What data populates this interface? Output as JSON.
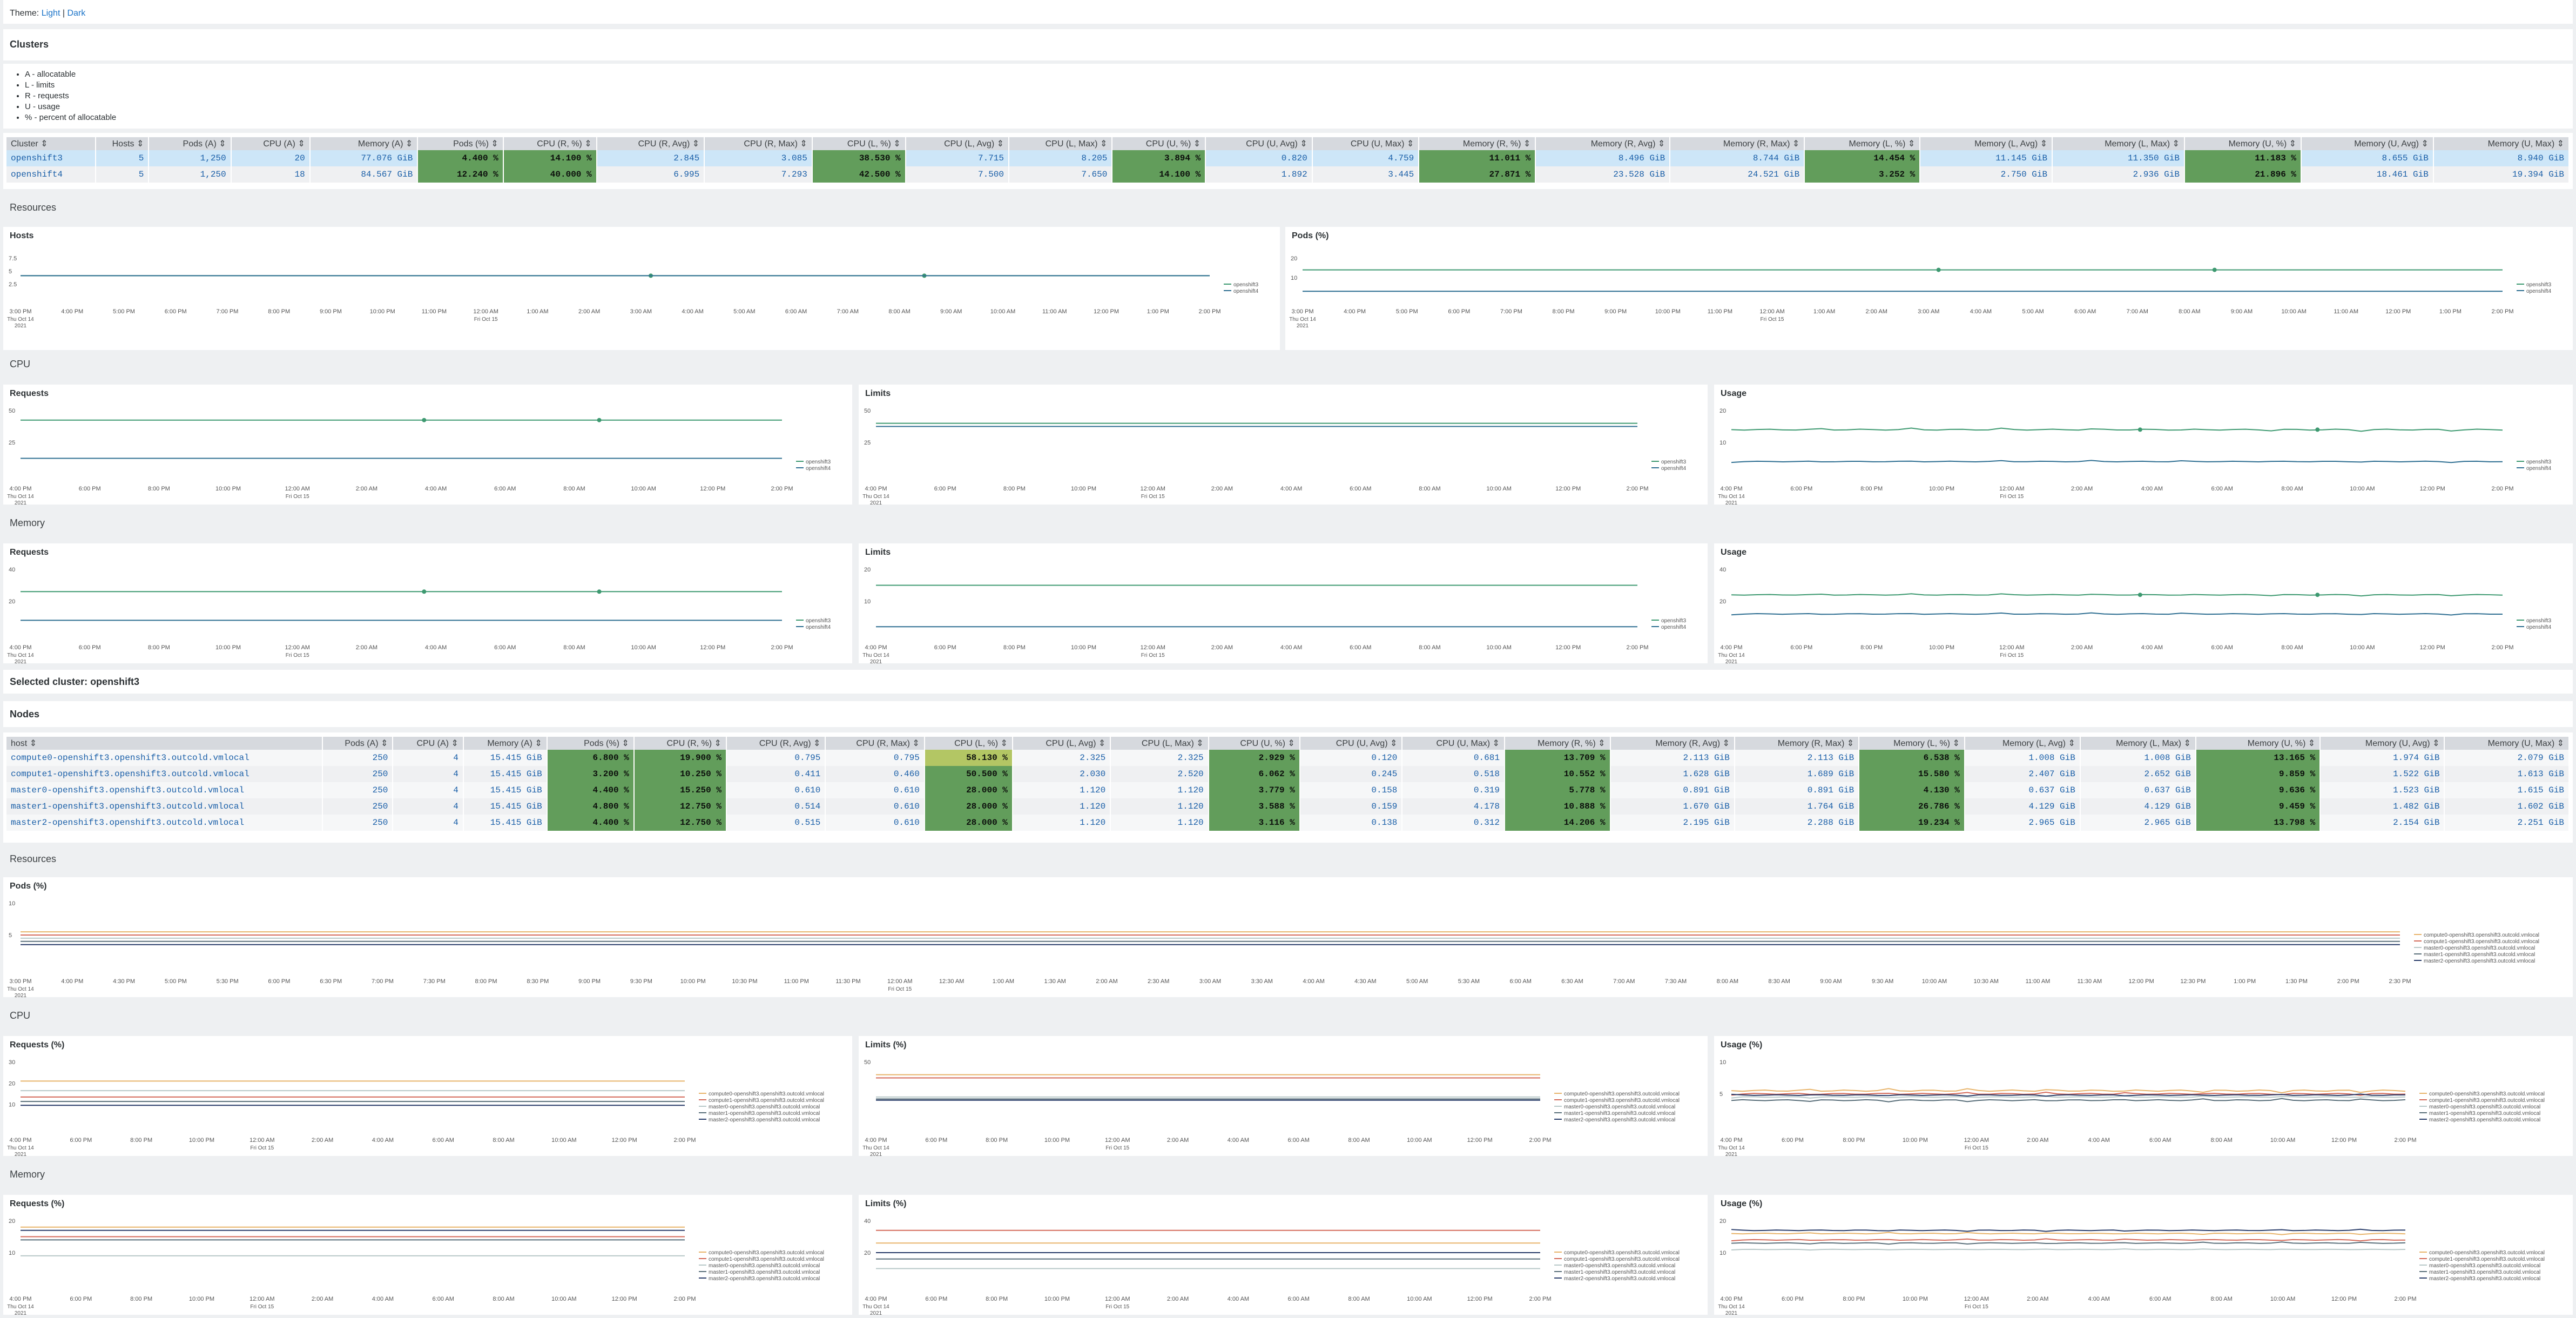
{
  "theme": {
    "label": "Theme:",
    "light": "Light",
    "sep": "|",
    "dark": "Dark"
  },
  "clusters": {
    "title": "Clusters",
    "legend": [
      "A - allocatable",
      "L - limits",
      "R - requests",
      "U - usage",
      "% - percent of allocatable"
    ],
    "columns": [
      "Cluster ⇕",
      "Hosts ⇕",
      "Pods (A) ⇕",
      "CPU (A) ⇕",
      "Memory (A) ⇕",
      "Pods (%) ⇕",
      "CPU (R, %) ⇕",
      "CPU (R, Avg) ⇕",
      "CPU (R, Max) ⇕",
      "CPU (L, %) ⇕",
      "CPU (L, Avg) ⇕",
      "CPU (L, Max) ⇕",
      "CPU (U, %) ⇕",
      "CPU (U, Avg) ⇕",
      "CPU (U, Max) ⇕",
      "Memory (R, %) ⇕",
      "Memory (R, Avg) ⇕",
      "Memory (R, Max) ⇕",
      "Memory (L, %) ⇕",
      "Memory (L, Avg) ⇕",
      "Memory (L, Max) ⇕",
      "Memory (U, %) ⇕",
      "Memory (U, Avg) ⇕",
      "Memory (U, Max) ⇕"
    ],
    "rows": [
      [
        "openshift3",
        "5",
        "1,250",
        "20",
        "77.076 GiB",
        "4.400 %",
        "14.100 %",
        "2.845",
        "3.085",
        "38.530 %",
        "7.715",
        "8.205",
        "3.894 %",
        "0.820",
        "4.759",
        "11.011 %",
        "8.496 GiB",
        "8.744 GiB",
        "14.454 %",
        "11.145 GiB",
        "11.350 GiB",
        "11.183 %",
        "8.655 GiB",
        "8.940 GiB"
      ],
      [
        "openshift4",
        "5",
        "1,250",
        "18",
        "84.567 GiB",
        "12.240 %",
        "40.000 %",
        "6.995",
        "7.293",
        "42.500 %",
        "7.500",
        "7.650",
        "14.100 %",
        "1.892",
        "3.445",
        "27.871 %",
        "23.528 GiB",
        "24.521 GiB",
        "3.252 %",
        "2.750 GiB",
        "2.936 GiB",
        "21.896 %",
        "18.461 GiB",
        "19.394 GiB"
      ]
    ],
    "highlight": [
      [
        5,
        6,
        9,
        12,
        15,
        18,
        21
      ],
      [
        5,
        6,
        9,
        12,
        15,
        18,
        21
      ]
    ],
    "hl_color": "#629d5b"
  },
  "resources1": {
    "title": "Resources",
    "hosts_title": "Hosts",
    "pods_title": "Pods (%)",
    "cpu_title": "CPU",
    "memory_title": "Memory",
    "requests": "Requests",
    "limits": "Limits",
    "usage": "Usage"
  },
  "legend_clusters": [
    "openshift3",
    "openshift4"
  ],
  "series_colors": {
    "openshift3": "#3d9970",
    "openshift4": "#2f6f92"
  },
  "axis_small": {
    "hosts_y": [
      "7.5",
      "5",
      "2.5"
    ],
    "pods_y": [
      "20",
      "10"
    ],
    "cpu_req_y": [
      "50",
      "25"
    ],
    "cpu_lim_y": [
      "50",
      "25"
    ],
    "cpu_use_y": [
      "20",
      "10"
    ],
    "mem_req_y": [
      "40",
      "20"
    ],
    "mem_lim_y": [
      "20",
      "10"
    ],
    "mem_use_y": [
      "40",
      "20"
    ]
  },
  "xticks_full": [
    "3:00 PM",
    "4:00 PM",
    "5:00 PM",
    "6:00 PM",
    "7:00 PM",
    "8:00 PM",
    "9:00 PM",
    "10:00 PM",
    "11:00 PM",
    "12:00 AM",
    "1:00 AM",
    "2:00 AM",
    "3:00 AM",
    "4:00 AM",
    "5:00 AM",
    "6:00 AM",
    "7:00 AM",
    "8:00 AM",
    "9:00 AM",
    "10:00 AM",
    "11:00 AM",
    "12:00 PM",
    "1:00 PM",
    "2:00 PM"
  ],
  "xticks_half": [
    "4:00 PM",
    "6:00 PM",
    "8:00 PM",
    "10:00 PM",
    "12:00 AM",
    "2:00 AM",
    "4:00 AM",
    "6:00 AM",
    "8:00 AM",
    "10:00 AM",
    "12:00 PM",
    "2:00 PM"
  ],
  "xdate": {
    "day1": "Thu Oct 14",
    "year": "2021",
    "day2": "Fri Oct 15"
  },
  "selected": {
    "title": "Selected cluster: openshift3",
    "nodes_title": "Nodes"
  },
  "nodes": {
    "columns": [
      "host ⇕",
      "Pods (A) ⇕",
      "CPU (A) ⇕",
      "Memory (A) ⇕",
      "Pods (%) ⇕",
      "CPU (R, %) ⇕",
      "CPU (R, Avg) ⇕",
      "CPU (R, Max) ⇕",
      "CPU (L, %) ⇕",
      "CPU (L, Avg) ⇕",
      "CPU (L, Max) ⇕",
      "CPU (U, %) ⇕",
      "CPU (U, Avg) ⇕",
      "CPU (U, Max) ⇕",
      "Memory (R, %) ⇕",
      "Memory (R, Avg) ⇕",
      "Memory (R, Max) ⇕",
      "Memory (L, %) ⇕",
      "Memory (L, Avg) ⇕",
      "Memory (L, Max) ⇕",
      "Memory (U, %) ⇕",
      "Memory (U, Avg) ⇕",
      "Memory (U, Max) ⇕"
    ],
    "rows": [
      [
        "compute0-openshift3.openshift3.outcold.vmlocal",
        "250",
        "4",
        "15.415 GiB",
        "6.800 %",
        "19.900 %",
        "0.795",
        "0.795",
        "58.130 %",
        "2.325",
        "2.325",
        "2.929 %",
        "0.120",
        "0.681",
        "13.709 %",
        "2.113 GiB",
        "2.113 GiB",
        "6.538 %",
        "1.008 GiB",
        "1.008 GiB",
        "13.165 %",
        "1.974 GiB",
        "2.079 GiB"
      ],
      [
        "compute1-openshift3.openshift3.outcold.vmlocal",
        "250",
        "4",
        "15.415 GiB",
        "3.200 %",
        "10.250 %",
        "0.411",
        "0.460",
        "50.500 %",
        "2.030",
        "2.520",
        "6.062 %",
        "0.245",
        "0.518",
        "10.552 %",
        "1.628 GiB",
        "1.689 GiB",
        "15.580 %",
        "2.407 GiB",
        "2.652 GiB",
        "9.859 %",
        "1.522 GiB",
        "1.613 GiB"
      ],
      [
        "master0-openshift3.openshift3.outcold.vmlocal",
        "250",
        "4",
        "15.415 GiB",
        "4.400 %",
        "15.250 %",
        "0.610",
        "0.610",
        "28.000 %",
        "1.120",
        "1.120",
        "3.779 %",
        "0.158",
        "0.319",
        "5.778 %",
        "0.891 GiB",
        "0.891 GiB",
        "4.130 %",
        "0.637 GiB",
        "0.637 GiB",
        "9.636 %",
        "1.523 GiB",
        "1.615 GiB"
      ],
      [
        "master1-openshift3.openshift3.outcold.vmlocal",
        "250",
        "4",
        "15.415 GiB",
        "4.800 %",
        "12.750 %",
        "0.514",
        "0.610",
        "28.000 %",
        "1.120",
        "1.120",
        "3.588 %",
        "0.159",
        "4.178",
        "10.888 %",
        "1.670 GiB",
        "1.764 GiB",
        "26.786 %",
        "4.129 GiB",
        "4.129 GiB",
        "9.459 %",
        "1.482 GiB",
        "1.602 GiB"
      ],
      [
        "master2-openshift3.openshift3.outcold.vmlocal",
        "250",
        "4",
        "15.415 GiB",
        "4.400 %",
        "12.750 %",
        "0.515",
        "0.610",
        "28.000 %",
        "1.120",
        "1.120",
        "3.116 %",
        "0.138",
        "0.312",
        "14.206 %",
        "2.195 GiB",
        "2.288 GiB",
        "19.234 %",
        "2.965 GiB",
        "2.965 GiB",
        "13.798 %",
        "2.154 GiB",
        "2.251 GiB"
      ]
    ],
    "highlight_g": [
      [
        4,
        5,
        11,
        14,
        17,
        20
      ],
      [
        4,
        5,
        8,
        11,
        14,
        17,
        20
      ],
      [
        4,
        5,
        8,
        11,
        14,
        17,
        20
      ],
      [
        4,
        5,
        8,
        11,
        14,
        17,
        20
      ],
      [
        4,
        5,
        8,
        11,
        14,
        17,
        20
      ]
    ],
    "highlight_y": [
      [
        8
      ],
      [],
      [],
      [],
      []
    ]
  },
  "resources2": {
    "title": "Resources",
    "pods_title": "Pods (%)",
    "cpu_title": "CPU",
    "memory_title": "Memory",
    "requests": "Requests (%)",
    "limits": "Limits (%)",
    "usage": "Usage (%)"
  },
  "legend_nodes": [
    "compute0-openshift3.openshift3.outcold.vmlocal",
    "compute1-openshift3.openshift3.outcold.vmlocal",
    "master0-openshift3.openshift3.outcold.vmlocal",
    "master1-openshift3.openshift3.outcold.vmlocal",
    "master2-openshift3.openshift3.outcold.vmlocal"
  ],
  "node_colors": [
    "#e8b46a",
    "#d46a5a",
    "#b8c8c8",
    "#5a6f7a",
    "#2a3d6a"
  ],
  "axis_nodes": {
    "pods_y": [
      "10",
      "5"
    ],
    "cpu_req_y": [
      "30",
      "20",
      "10"
    ],
    "cpu_lim_y": [
      "50"
    ],
    "cpu_use_y": [
      "10",
      "5"
    ],
    "mem_req_y": [
      "20",
      "10"
    ],
    "mem_lim_y": [
      "40",
      "20"
    ],
    "mem_use_y": [
      "20",
      "10"
    ]
  },
  "xticks_pods2": [
    "3:00 PM",
    "4:00 PM",
    "4:30 PM",
    "5:00 PM",
    "5:30 PM",
    "6:00 PM",
    "6:30 PM",
    "7:00 PM",
    "7:30 PM",
    "8:00 PM",
    "8:30 PM",
    "9:00 PM",
    "9:30 PM",
    "10:00 PM",
    "10:30 PM",
    "11:00 PM",
    "11:30 PM",
    "12:00 AM",
    "12:30 AM",
    "1:00 AM",
    "1:30 AM",
    "2:00 AM",
    "2:30 AM",
    "3:00 AM",
    "3:30 AM",
    "4:00 AM",
    "4:30 AM",
    "5:00 AM",
    "5:30 AM",
    "6:00 AM",
    "6:30 AM",
    "7:00 AM",
    "7:30 AM",
    "8:00 AM",
    "8:30 AM",
    "9:00 AM",
    "9:30 AM",
    "10:00 AM",
    "10:30 AM",
    "11:00 AM",
    "11:30 AM",
    "12:00 PM",
    "12:30 PM",
    "1:00 PM",
    "1:30 PM",
    "2:00 PM",
    "2:30 PM"
  ]
}
